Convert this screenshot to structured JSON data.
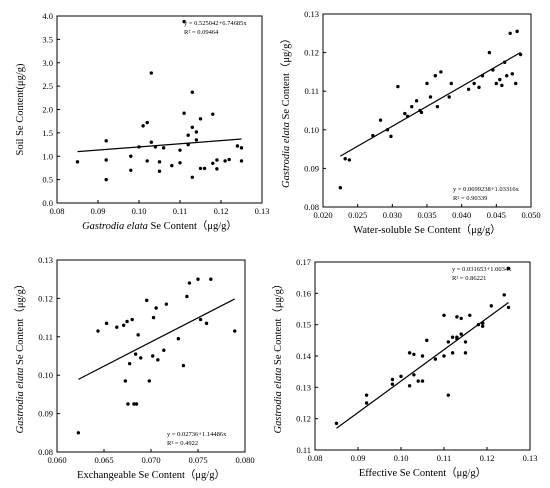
{
  "chart_data": [
    {
      "type": "scatter",
      "xlabel": "Gastrodia elata Se Content（μg/g）",
      "xlabel_parts": [
        {
          "text": "Gastrodia elata",
          "italic": true
        },
        {
          "text": " Se Content（μg/g）",
          "italic": false
        }
      ],
      "ylabel": "Soil Se Content(μg/g)",
      "ylabel_parts": [
        {
          "text": "Soil Se Content(μg/g)",
          "italic": false
        }
      ],
      "xlim": [
        0.08,
        0.13
      ],
      "ylim": [
        0.0,
        4.0
      ],
      "xticks": [
        "0.08",
        "0.09",
        "0.10",
        "0.11",
        "0.12",
        "0.13"
      ],
      "yticks": [
        "0.0",
        "0.5",
        "1.0",
        "1.5",
        "2.0",
        "2.5",
        "3.0",
        "3.5",
        "4.0"
      ],
      "equation": "y = 0.525042+6.74685x",
      "r2": "R² = 0.09464",
      "annotation_position": "top-right",
      "fit": {
        "slope": 6.74685,
        "intercept": 0.525042
      },
      "x": [
        0.085,
        0.092,
        0.092,
        0.092,
        0.098,
        0.098,
        0.1,
        0.101,
        0.102,
        0.102,
        0.103,
        0.103,
        0.104,
        0.105,
        0.105,
        0.106,
        0.108,
        0.11,
        0.11,
        0.111,
        0.111,
        0.112,
        0.112,
        0.113,
        0.113,
        0.113,
        0.114,
        0.114,
        0.115,
        0.115,
        0.116,
        0.118,
        0.118,
        0.119,
        0.119,
        0.121,
        0.122,
        0.124,
        0.125,
        0.125
      ],
      "y": [
        0.88,
        0.5,
        0.92,
        1.33,
        1.0,
        0.7,
        1.2,
        1.65,
        1.72,
        0.9,
        2.78,
        1.3,
        1.2,
        0.88,
        0.68,
        1.18,
        0.8,
        0.86,
        1.13,
        3.88,
        1.92,
        1.25,
        1.45,
        1.62,
        2.37,
        0.55,
        1.52,
        1.35,
        1.8,
        0.74,
        0.74,
        1.9,
        0.85,
        0.92,
        0.73,
        0.9,
        0.93,
        1.22,
        0.9,
        1.18
      ]
    },
    {
      "type": "scatter",
      "xlabel": "Water-soluble Se Content（μg/g）",
      "xlabel_parts": [
        {
          "text": "Water-soluble Se Content（μg/g）",
          "italic": false
        }
      ],
      "ylabel": "Gastrodia elata Se Content（μg/g）",
      "ylabel_parts": [
        {
          "text": "Gastrodia elata",
          "italic": true
        },
        {
          "text": " Se Content（μg/g）",
          "italic": false
        }
      ],
      "xlim": [
        0.02,
        0.05
      ],
      "ylim": [
        0.08,
        0.13
      ],
      "xticks": [
        "0.020",
        "0.025",
        "0.030",
        "0.035",
        "0.040",
        "0.045",
        "0.050"
      ],
      "yticks": [
        "0.08",
        "0.09",
        "0.10",
        "0.11",
        "0.12",
        "0.13"
      ],
      "equation": "y = 0.0699238+1.03316x",
      "r2": "R² = 0.90339",
      "annotation_position": "bottom-right",
      "fit": {
        "slope": 1.03316,
        "intercept": 0.0699238
      },
      "x": [
        0.0225,
        0.0232,
        0.0238,
        0.0272,
        0.0283,
        0.0293,
        0.0298,
        0.0308,
        0.0318,
        0.0322,
        0.0328,
        0.0335,
        0.034,
        0.0342,
        0.035,
        0.0355,
        0.0362,
        0.0365,
        0.037,
        0.0382,
        0.0385,
        0.041,
        0.0418,
        0.0425,
        0.043,
        0.044,
        0.0445,
        0.045,
        0.0455,
        0.0458,
        0.0462,
        0.0465,
        0.047,
        0.0473,
        0.0478,
        0.048,
        0.0485
      ],
      "y": [
        0.085,
        0.0925,
        0.0922,
        0.0985,
        0.1025,
        0.1,
        0.0983,
        0.1112,
        0.1042,
        0.1035,
        0.106,
        0.1075,
        0.105,
        0.1045,
        0.112,
        0.1085,
        0.114,
        0.106,
        0.115,
        0.1085,
        0.112,
        0.1105,
        0.112,
        0.111,
        0.114,
        0.12,
        0.1155,
        0.112,
        0.113,
        0.1115,
        0.1175,
        0.114,
        0.125,
        0.1145,
        0.112,
        0.1255,
        0.1195
      ]
    },
    {
      "type": "scatter",
      "xlabel": "Exchangeable Se Content（μg/g）",
      "xlabel_parts": [
        {
          "text": "Exchangeable Se Content（μg/g）",
          "italic": false
        }
      ],
      "ylabel": "Gastrodia elata Se Content（μg/g）",
      "ylabel_parts": [
        {
          "text": "Gastrodia elata",
          "italic": true
        },
        {
          "text": " Se Content（μg/g）",
          "italic": false
        }
      ],
      "xlim": [
        0.06,
        0.082
      ],
      "ylim": [
        0.08,
        0.13
      ],
      "xticks": [
        "0.060",
        "0.065",
        "0.070",
        "0.075",
        "0.080"
      ],
      "yticks": [
        "0.08",
        "0.09",
        "0.10",
        "0.11",
        "0.12",
        "0.13"
      ],
      "equation": "y = 0.02736+1.14486x",
      "r2": "R² = 0.4922",
      "annotation_position": "bottom-right",
      "fit": {
        "slope": 1.14486,
        "intercept": 0.02736
      },
      "x": [
        0.0625,
        0.0648,
        0.0658,
        0.067,
        0.0678,
        0.068,
        0.0682,
        0.0683,
        0.0685,
        0.0688,
        0.069,
        0.0692,
        0.0693,
        0.0695,
        0.0698,
        0.0705,
        0.0708,
        0.0712,
        0.0713,
        0.0716,
        0.0718,
        0.0725,
        0.0728,
        0.0742,
        0.0748,
        0.0752,
        0.0755,
        0.0765,
        0.0768,
        0.0775,
        0.078,
        0.0808
      ],
      "y": [
        0.085,
        0.1115,
        0.1135,
        0.1125,
        0.113,
        0.0985,
        0.114,
        0.0925,
        0.103,
        0.1145,
        0.0925,
        0.1055,
        0.0925,
        0.1105,
        0.1045,
        0.1195,
        0.0985,
        0.105,
        0.115,
        0.1175,
        0.104,
        0.1065,
        0.1185,
        0.1095,
        0.1025,
        0.1205,
        0.124,
        0.125,
        0.1145,
        0.1135,
        0.125,
        0.1115
      ]
    },
    {
      "type": "scatter",
      "xlabel": "Effective Se Content（μg/g）",
      "xlabel_parts": [
        {
          "text": "Effective Se Content（μg/g）",
          "italic": false
        }
      ],
      "ylabel": "Gastrodia elata Se Content（μg/g）",
      "ylabel_parts": [
        {
          "text": "Gastrodia elata",
          "italic": true
        },
        {
          "text": " Se Content（μg/g）",
          "italic": false
        }
      ],
      "xlim": [
        0.08,
        0.13
      ],
      "ylim": [
        0.11,
        0.17
      ],
      "xticks": [
        "0.08",
        "0.09",
        "0.10",
        "0.11",
        "0.12",
        "0.13"
      ],
      "yticks": [
        "0.11",
        "0.12",
        "0.13",
        "0.14",
        "0.15",
        "0.16",
        "0.17"
      ],
      "equation": "y = 0.031653+1.0034x",
      "r2": "R² = 0.86221",
      "annotation_position": "top-right",
      "fit": {
        "slope": 1.0034,
        "intercept": 0.031653
      },
      "x": [
        0.085,
        0.092,
        0.092,
        0.098,
        0.098,
        0.1,
        0.102,
        0.102,
        0.103,
        0.103,
        0.104,
        0.105,
        0.105,
        0.106,
        0.108,
        0.11,
        0.11,
        0.111,
        0.111,
        0.112,
        0.112,
        0.113,
        0.113,
        0.113,
        0.114,
        0.114,
        0.115,
        0.115,
        0.116,
        0.118,
        0.119,
        0.119,
        0.121,
        0.124,
        0.125,
        0.125
      ],
      "y": [
        0.1185,
        0.125,
        0.1275,
        0.131,
        0.1325,
        0.1335,
        0.141,
        0.1305,
        0.134,
        0.1405,
        0.132,
        0.132,
        0.14,
        0.145,
        0.139,
        0.153,
        0.14,
        0.1275,
        0.1445,
        0.146,
        0.141,
        0.146,
        0.1525,
        0.1455,
        0.147,
        0.152,
        0.141,
        0.1445,
        0.153,
        0.15,
        0.1505,
        0.1495,
        0.156,
        0.1595,
        0.1555,
        0.168
      ]
    }
  ]
}
